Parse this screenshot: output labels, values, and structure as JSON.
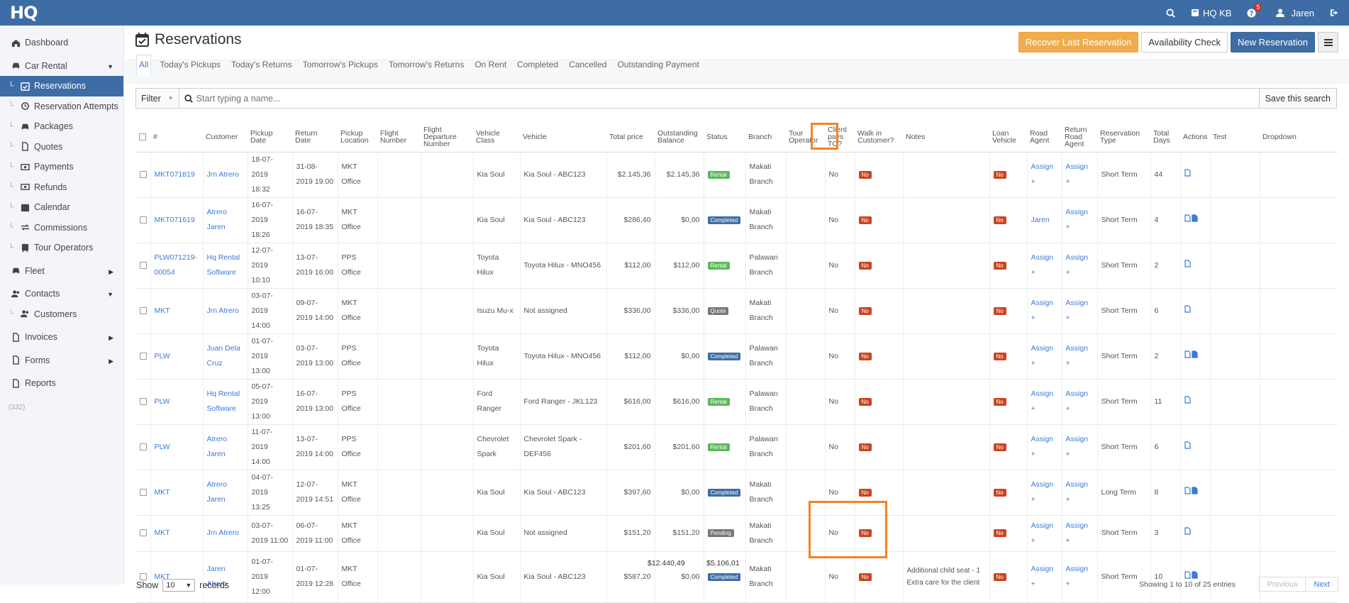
{
  "topbar": {
    "logo": "HQ",
    "kb_label": "HQ KB",
    "help_badge": "5",
    "user_name": "Jaren"
  },
  "sidebar": {
    "items": [
      {
        "label": "Dashboard",
        "icon": "home-icon",
        "type": "top"
      },
      {
        "label": "Car Rental",
        "icon": "car-icon",
        "type": "top",
        "caret": "▼"
      },
      {
        "label": "Reservations",
        "icon": "calendar-check-icon",
        "type": "sub",
        "active": true
      },
      {
        "label": "Reservation Attempts",
        "icon": "history-icon",
        "type": "sub"
      },
      {
        "label": "Packages",
        "icon": "car-icon",
        "type": "sub"
      },
      {
        "label": "Quotes",
        "icon": "file-icon",
        "type": "sub"
      },
      {
        "label": "Payments",
        "icon": "money-icon",
        "type": "sub"
      },
      {
        "label": "Refunds",
        "icon": "money-icon",
        "type": "sub"
      },
      {
        "label": "Calendar",
        "icon": "calendar-icon",
        "type": "sub"
      },
      {
        "label": "Commissions",
        "icon": "exchange-icon",
        "type": "sub"
      },
      {
        "label": "Tour Operators",
        "icon": "bus-icon",
        "type": "sub"
      },
      {
        "label": "Fleet",
        "icon": "car-icon",
        "type": "top",
        "caret": "▶"
      },
      {
        "label": "Contacts",
        "icon": "users-icon",
        "type": "top",
        "caret": "▼"
      },
      {
        "label": "Customers",
        "icon": "users-icon",
        "type": "sub"
      },
      {
        "label": "Invoices",
        "icon": "file-icon",
        "type": "top",
        "caret": "▶"
      },
      {
        "label": "Forms",
        "icon": "file-icon",
        "type": "top",
        "caret": "▶"
      },
      {
        "label": "Reports",
        "icon": "file-icon",
        "type": "top"
      }
    ],
    "count": "(332)"
  },
  "page": {
    "title": "Reservations",
    "btn_recover": "Recover Last Reservation",
    "btn_availability": "Availability Check",
    "btn_new": "New Reservation"
  },
  "tabs": [
    "All",
    "Today's Pickups",
    "Today's Returns",
    "Tomorrow's Pickups",
    "Tomorrow's Returns",
    "On Rent",
    "Completed",
    "Cancelled",
    "Outstanding Payment"
  ],
  "filter": {
    "label": "Filter",
    "placeholder": "Start typing a name...",
    "save": "Save this search"
  },
  "columns": [
    "#",
    "Customer",
    "Pickup Date",
    "Return Date",
    "Pickup Location",
    "Flight Number",
    "Flight Departure Number",
    "Vehicle Class",
    "Vehicle",
    "Total price",
    "Outstanding Balance",
    "Status",
    "Branch",
    "Tour Operator",
    "Client pays TO?",
    "Walk in Customer?",
    "Notes",
    "Loan Vehicle",
    "Road Agent",
    "Return Road Agent",
    "Reservation Type",
    "Total Days",
    "Actions",
    "Test",
    "Dropdown"
  ],
  "rows": [
    {
      "id": "MKT071819",
      "customer": "Jrn Atrero",
      "pickup": "18-07-2019 18:32",
      "return": "31-08-2019 19:00",
      "location": "MKT Office",
      "vclass": "Kia Soul",
      "vehicle": "Kia Soul - ABC123",
      "total": "$2.145,36",
      "balance": "$2.145,36",
      "status": "Rental",
      "branch": "Makati Branch",
      "clientpays": "No",
      "walkin": "No",
      "notes": "",
      "loan": "No",
      "agent": "Assign +",
      "ragent": "Assign +",
      "rtype": "Short Term",
      "days": "44",
      "docs": 1
    },
    {
      "id": "MKT071619",
      "customer": "Atrero Jaren",
      "pickup": "16-07-2019 18:26",
      "return": "16-07-2019 18:35",
      "location": "MKT Office",
      "vclass": "Kia Soul",
      "vehicle": "Kia Soul - ABC123",
      "total": "$286,40",
      "balance": "$0,00",
      "status": "Completed",
      "branch": "Makati Branch",
      "clientpays": "No",
      "walkin": "No",
      "notes": "",
      "loan": "No",
      "agent": "Jaren",
      "ragent": "Assign +",
      "rtype": "Short Term",
      "days": "4",
      "docs": 2
    },
    {
      "id": "PLW071219-00054",
      "customer": "Hq Rental Software",
      "pickup": "12-07-2019 10:10",
      "return": "13-07-2019 16:00",
      "location": "PPS Office",
      "vclass": "Toyota Hilux",
      "vehicle": "Toyota Hilux - MNO456",
      "total": "$112,00",
      "balance": "$112,00",
      "status": "Rental",
      "branch": "Palawan Branch",
      "clientpays": "No",
      "walkin": "No",
      "notes": "",
      "loan": "No",
      "agent": "Assign +",
      "ragent": "Assign +",
      "rtype": "Short Term",
      "days": "2",
      "docs": 1
    },
    {
      "id": "MKT",
      "customer": "Jrn Atrero",
      "pickup": "03-07-2019 14:00",
      "return": "09-07-2019 14:00",
      "location": "MKT Office",
      "vclass": "Isuzu Mu-x",
      "vehicle": "Not assigned",
      "total": "$336,00",
      "balance": "$336,00",
      "status": "Quote",
      "branch": "Makati Branch",
      "clientpays": "No",
      "walkin": "No",
      "notes": "",
      "loan": "No",
      "agent": "Assign +",
      "ragent": "Assign +",
      "rtype": "Short Term",
      "days": "6",
      "docs": 1
    },
    {
      "id": "PLW",
      "customer": "Juan Dela Cruz",
      "pickup": "01-07-2019 13:00",
      "return": "03-07-2019 13:00",
      "location": "PPS Office",
      "vclass": "Toyota Hilux",
      "vehicle": "Toyota Hilux - MNO456",
      "total": "$112,00",
      "balance": "$0,00",
      "status": "Completed",
      "branch": "Palawan Branch",
      "clientpays": "No",
      "walkin": "No",
      "notes": "",
      "loan": "No",
      "agent": "Assign +",
      "ragent": "Assign +",
      "rtype": "Short Term",
      "days": "2",
      "docs": 2
    },
    {
      "id": "PLW",
      "customer": "Hq Rental Software",
      "pickup": "05-07-2019 13:00",
      "return": "16-07-2019 13:00",
      "location": "PPS Office",
      "vclass": "Ford Ranger",
      "vehicle": "Ford Ranger - JKL123",
      "total": "$616,00",
      "balance": "$616,00",
      "status": "Rental",
      "branch": "Palawan Branch",
      "clientpays": "No",
      "walkin": "No",
      "notes": "",
      "loan": "No",
      "agent": "Assign +",
      "ragent": "Assign +",
      "rtype": "Short Term",
      "days": "11",
      "docs": 1
    },
    {
      "id": "PLW",
      "customer": "Atrero Jaren",
      "pickup": "11-07-2019 14:00",
      "return": "13-07-2019 14:00",
      "location": "PPS Office",
      "vclass": "Chevrolet Spark",
      "vehicle": "Chevrolet Spark - DEF456",
      "total": "$201,60",
      "balance": "$201,60",
      "status": "Rental",
      "branch": "Palawan Branch",
      "clientpays": "No",
      "walkin": "No",
      "notes": "",
      "loan": "No",
      "agent": "Assign +",
      "ragent": "Assign +",
      "rtype": "Short Term",
      "days": "6",
      "docs": 1
    },
    {
      "id": "MKT",
      "customer": "Atrero Jaren",
      "pickup": "04-07-2019 13:25",
      "return": "12-07-2019 14:51",
      "location": "MKT Office",
      "vclass": "Kia Soul",
      "vehicle": "Kia Soul - ABC123",
      "total": "$397,60",
      "balance": "$0,00",
      "status": "Completed",
      "branch": "Makati Branch",
      "clientpays": "No",
      "walkin": "No",
      "notes": "",
      "loan": "No",
      "agent": "Assign +",
      "ragent": "Assign +",
      "rtype": "Long Term",
      "days": "8",
      "docs": 2
    },
    {
      "id": "MKT",
      "customer": "Jrn Atrero",
      "pickup": "03-07-2019 11:00",
      "return": "06-07-2019 11:00",
      "location": "MKT Office",
      "vclass": "Kia Soul",
      "vehicle": "Not assigned",
      "total": "$151,20",
      "balance": "$151,20",
      "status": "Pending",
      "branch": "Makati Branch",
      "clientpays": "No",
      "walkin": "No",
      "notes": "",
      "loan": "No",
      "agent": "Assign +",
      "ragent": "Assign +",
      "rtype": "Short Term",
      "days": "3",
      "docs": 1
    },
    {
      "id": "MKT",
      "customer": "Jaren Atrero",
      "pickup": "01-07-2019 12:00",
      "return": "01-07-2019 12:28",
      "location": "MKT Office",
      "vclass": "Kia Soul",
      "vehicle": "Kia Soul - ABC123",
      "total": "$587,20",
      "balance": "$0,00",
      "status": "Completed",
      "branch": "Makati Branch",
      "clientpays": "No",
      "walkin": "No",
      "notes": "Additional child seat - 1 Extra care for the client",
      "loan": "No",
      "agent": "Assign +",
      "ragent": "Assign +",
      "rtype": "Short Term",
      "days": "10",
      "docs": 2
    }
  ],
  "totals": {
    "total": "$12.440,49",
    "balance": "$5.106,01"
  },
  "footer": {
    "show": "Show",
    "records_value": "10",
    "records": "records",
    "info": "Showing 1 to 10 of 25 entries",
    "prev": "Previous",
    "next": "Next"
  }
}
